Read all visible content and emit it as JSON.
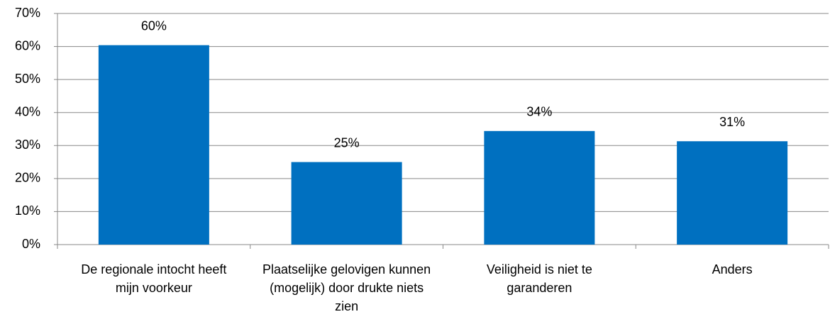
{
  "chart_data": {
    "type": "bar",
    "categories": [
      "De regionale intocht heeft mijn voorkeur",
      "Plaatselijke gelovigen kunnen (mogelijk) door drukte niets zien",
      "Veiligheid is niet te garanderen",
      "Anders"
    ],
    "values": [
      60.4,
      25,
      34.4,
      31.3
    ],
    "value_labels": [
      "60%",
      "25%",
      "34%",
      "31%"
    ],
    "color": "#0070c0",
    "ylim": [
      0,
      70
    ],
    "yticks": [
      {
        "value": 0,
        "label": "0%"
      },
      {
        "value": 10,
        "label": "10%"
      },
      {
        "value": 20,
        "label": "20%"
      },
      {
        "value": 30,
        "label": "30%"
      },
      {
        "value": 40,
        "label": "40%"
      },
      {
        "value": 50,
        "label": "50%"
      },
      {
        "value": 60,
        "label": "60%"
      },
      {
        "value": 70,
        "label": "70%"
      }
    ],
    "grid": true
  }
}
